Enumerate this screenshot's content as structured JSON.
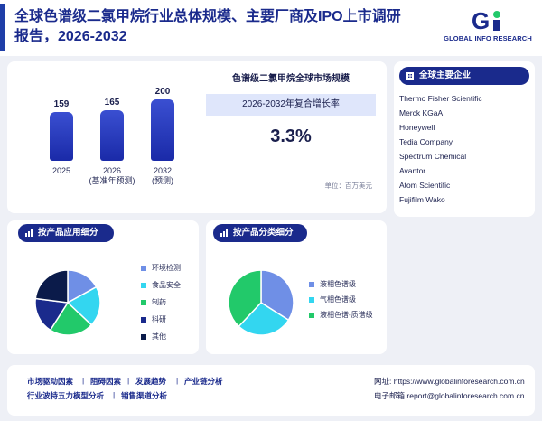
{
  "header": {
    "title": "全球色谱级二氯甲烷行业总体规模、主要厂商及IPO上市调研报告，2026-2032",
    "logo_text": "GLOBAL INFO RESEARCH"
  },
  "market": {
    "bars": [
      {
        "value": 159,
        "label": "2025"
      },
      {
        "value": 165,
        "label": "2026",
        "sublabel": "(基准年预测)"
      },
      {
        "value": 200,
        "label": "2032",
        "sublabel": "(预测)"
      }
    ],
    "title": "色谱级二氯甲烷全球市场规模",
    "cagr_label": "2026-2032年复合增长率",
    "cagr_value": "3.3%",
    "unit": "单位：百万美元"
  },
  "companies": {
    "title": "全球主要企业",
    "items": [
      "Thermo Fisher Scientific",
      "Merck KGaA",
      "Honeywell",
      "Tedia Company",
      "Spectrum Chemical",
      "Avantor",
      "Atom Scientific",
      "Fujifilm Wako"
    ]
  },
  "app_segment": {
    "title": "按产品应用细分",
    "legend": [
      {
        "label": "环境检测",
        "color": "#6f8fe6",
        "value": 0.17
      },
      {
        "label": "食品安全",
        "color": "#33d6f0",
        "value": 0.2
      },
      {
        "label": "制药",
        "color": "#22c96a",
        "value": 0.22
      },
      {
        "label": "科研",
        "color": "#1a2a8c",
        "value": 0.18
      },
      {
        "label": "其他",
        "color": "#0b1b4a",
        "value": 0.23
      }
    ]
  },
  "type_segment": {
    "title": "按产品分类细分",
    "legend": [
      {
        "label": "液相色谱级",
        "color": "#6f8fe6",
        "value": 0.34
      },
      {
        "label": "气相色谱级",
        "color": "#33d6f0",
        "value": 0.28
      },
      {
        "label": "液相色谱-质谱级",
        "color": "#22c96a",
        "value": 0.38
      }
    ]
  },
  "footer": {
    "links_row1": [
      "市场驱动因素",
      "阻碍因素",
      "发展趋势",
      "产业链分析"
    ],
    "links_row2": [
      "行业波特五力模型分析",
      "销售渠道分析"
    ],
    "website_label": "网址:",
    "website": "https://www.globalinforesearch.com.cn",
    "email_label": "电子邮箱",
    "email": "report@globalinforesearch.com.cn"
  },
  "colors": {
    "primary": "#1a2a8c",
    "accent": "#33d6f0",
    "green": "#22c96a"
  }
}
